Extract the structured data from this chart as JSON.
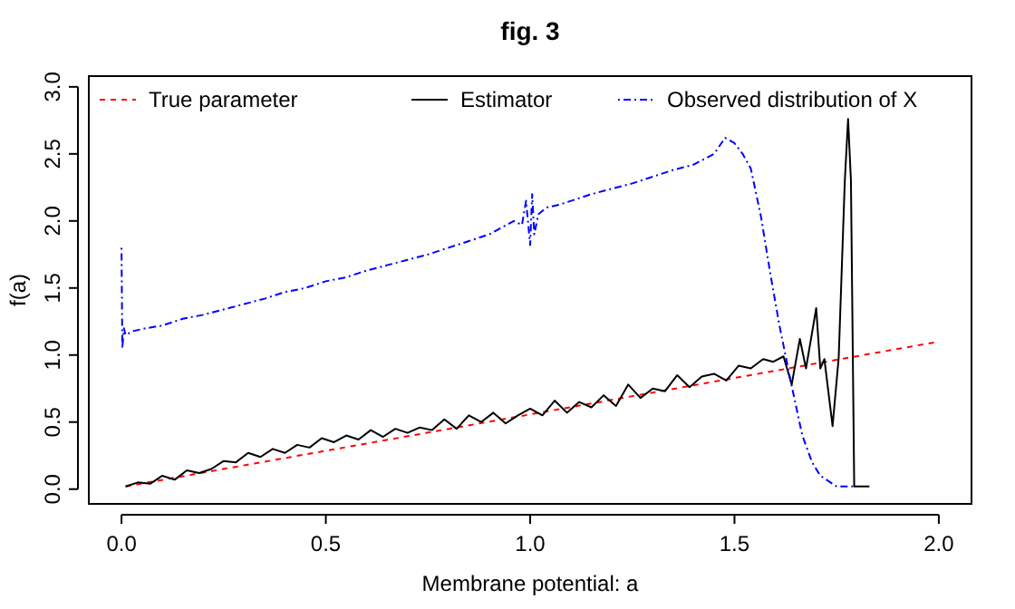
{
  "chart_data": {
    "type": "line",
    "title": "fig. 3",
    "xlabel": "Membrane potential: a",
    "ylabel": "f(a)",
    "xlim": [
      -0.08,
      2.08
    ],
    "ylim": [
      -0.11,
      3.08
    ],
    "xticks": [
      {
        "value": 0,
        "label": "0.0"
      },
      0.5,
      {
        "value": 1,
        "label": "1.0"
      },
      1.5,
      {
        "value": 2,
        "label": "2.0"
      }
    ],
    "yticks": [
      {
        "value": 0,
        "label": "0.0"
      },
      0.5,
      {
        "value": 1,
        "label": "1.0"
      },
      1.5,
      {
        "value": 2,
        "label": "2.0"
      },
      2.5,
      {
        "value": 3,
        "label": "3.0"
      }
    ],
    "grid": false,
    "legend": "top",
    "series": [
      {
        "name": "True parameter",
        "color": "#ff0000",
        "line_style": "dashed",
        "x": [
          0.01,
          2.0
        ],
        "values": [
          0.02,
          1.1
        ]
      },
      {
        "name": "Estimator",
        "color": "#000000",
        "line_style": "solid",
        "x": [
          0.01,
          0.04,
          0.07,
          0.1,
          0.13,
          0.16,
          0.19,
          0.22,
          0.25,
          0.28,
          0.31,
          0.34,
          0.37,
          0.4,
          0.43,
          0.46,
          0.49,
          0.52,
          0.55,
          0.58,
          0.61,
          0.64,
          0.67,
          0.7,
          0.73,
          0.76,
          0.79,
          0.82,
          0.85,
          0.88,
          0.91,
          0.94,
          0.97,
          1.0,
          1.03,
          1.06,
          1.09,
          1.12,
          1.15,
          1.18,
          1.21,
          1.24,
          1.27,
          1.3,
          1.33,
          1.36,
          1.39,
          1.42,
          1.45,
          1.48,
          1.51,
          1.54,
          1.57,
          1.595,
          1.62,
          1.64,
          1.66,
          1.675,
          1.7,
          1.71,
          1.72,
          1.74,
          1.755,
          1.77,
          1.778,
          1.785,
          1.793,
          1.83
        ],
        "values": [
          0.02,
          0.05,
          0.04,
          0.1,
          0.07,
          0.14,
          0.12,
          0.15,
          0.21,
          0.2,
          0.27,
          0.24,
          0.3,
          0.27,
          0.33,
          0.31,
          0.38,
          0.35,
          0.4,
          0.37,
          0.44,
          0.39,
          0.45,
          0.42,
          0.46,
          0.44,
          0.52,
          0.45,
          0.55,
          0.5,
          0.57,
          0.49,
          0.55,
          0.6,
          0.55,
          0.66,
          0.57,
          0.65,
          0.61,
          0.7,
          0.62,
          0.78,
          0.68,
          0.75,
          0.73,
          0.85,
          0.76,
          0.84,
          0.86,
          0.81,
          0.92,
          0.9,
          0.97,
          0.95,
          0.99,
          0.78,
          1.12,
          0.9,
          1.35,
          0.9,
          0.97,
          0.47,
          0.98,
          2.3,
          2.76,
          2.3,
          0.02,
          0.02
        ]
      },
      {
        "name": "Observed distribution of X",
        "color": "#0000ff",
        "line_style": "dotdash",
        "x": [
          0.0,
          0.002,
          0.006,
          0.01,
          0.03,
          0.06,
          0.1,
          0.15,
          0.2,
          0.25,
          0.3,
          0.35,
          0.4,
          0.45,
          0.5,
          0.55,
          0.6,
          0.65,
          0.7,
          0.75,
          0.8,
          0.85,
          0.9,
          0.93,
          0.96,
          0.98,
          0.99,
          1.0,
          1.005,
          1.01,
          1.02,
          1.04,
          1.07,
          1.1,
          1.15,
          1.2,
          1.25,
          1.3,
          1.35,
          1.4,
          1.45,
          1.477,
          1.5,
          1.52,
          1.54,
          1.565,
          1.587,
          1.61,
          1.64,
          1.666,
          1.69,
          1.71,
          1.75,
          1.8
        ],
        "values": [
          1.8,
          1.05,
          1.2,
          1.15,
          1.18,
          1.2,
          1.22,
          1.27,
          1.3,
          1.34,
          1.38,
          1.42,
          1.47,
          1.5,
          1.55,
          1.58,
          1.63,
          1.67,
          1.71,
          1.75,
          1.8,
          1.85,
          1.9,
          1.95,
          2.0,
          1.97,
          2.15,
          1.82,
          2.2,
          1.9,
          2.05,
          2.1,
          2.12,
          2.15,
          2.2,
          2.24,
          2.28,
          2.33,
          2.38,
          2.42,
          2.5,
          2.62,
          2.58,
          2.5,
          2.39,
          2.03,
          1.62,
          1.22,
          0.77,
          0.4,
          0.2,
          0.1,
          0.02,
          0.02
        ]
      }
    ]
  }
}
